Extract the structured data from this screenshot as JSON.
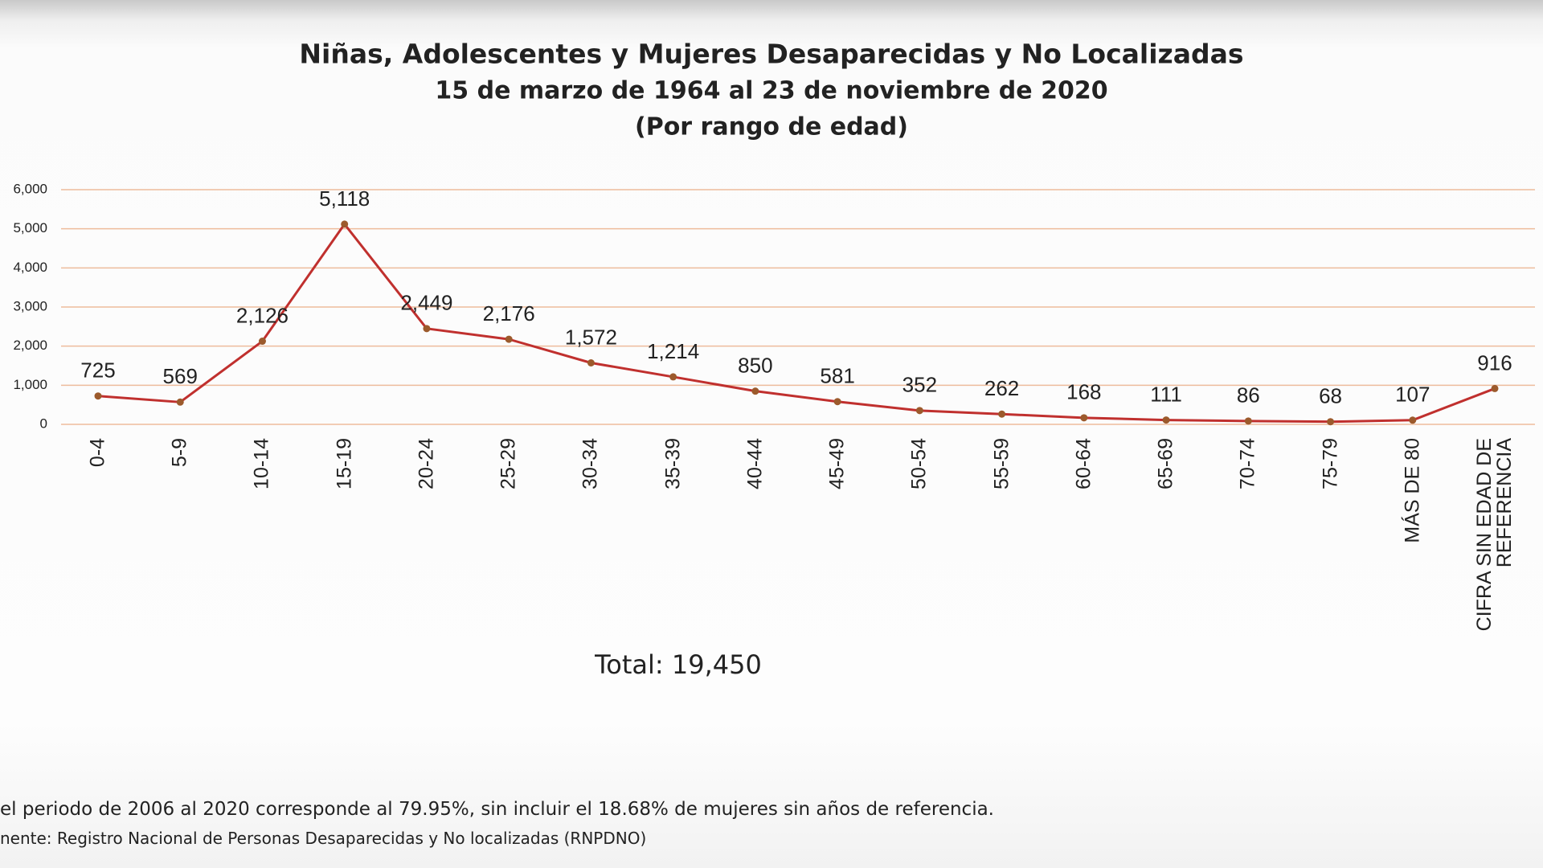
{
  "chart_data": {
    "type": "line",
    "title": "Niñas, Adolescentes y Mujeres Desaparecidas y No Localizadas",
    "subtitle": "15 de marzo de 1964 al 23 de noviembre de 2020",
    "subtitle2": "(Por rango de edad)",
    "categories": [
      "0-4",
      "5-9",
      "10-14",
      "15-19",
      "20-24",
      "25-29",
      "30-34",
      "35-39",
      "40-44",
      "45-49",
      "50-54",
      "55-59",
      "60-64",
      "65-69",
      "70-74",
      "75-79",
      "MÁS DE 80",
      "CIFRA SIN EDAD DE REFERENCIA"
    ],
    "values": [
      725,
      569,
      2126,
      5118,
      2449,
      2176,
      1572,
      1214,
      850,
      581,
      352,
      262,
      168,
      111,
      86,
      68,
      107,
      916
    ],
    "value_labels": [
      "725",
      "569",
      "2,126",
      "5,118",
      "2,449",
      "2,176",
      "1,572",
      "1,214",
      "850",
      "581",
      "352",
      "262",
      "168",
      "111",
      "86",
      "68",
      "107",
      "916"
    ],
    "color": "#c0302e",
    "marker_color": "#9c5a2c",
    "grid_color": "#eebc9c",
    "grid": true,
    "ylim": [
      0,
      6000
    ],
    "yticks": [
      0,
      {
        "value": 1000,
        "label": "1,000"
      },
      {
        "value": 2000,
        "label": "2,000"
      },
      {
        "value": 3000,
        "label": "3,000"
      },
      {
        "value": 4000,
        "label": "4,000"
      },
      {
        "value": 5000,
        "label": "5,000"
      },
      {
        "value": 6000,
        "label": "6,000"
      }
    ],
    "annotation": "Total: 19,450",
    "footnotes": [
      "el periodo de 2006 al 2020 corresponde al 79.95%, sin incluir el 18.68% de mujeres sin años de referencia.",
      "nente: Registro Nacional de Personas Desaparecidas y No localizadas (RNPDNO)"
    ]
  }
}
